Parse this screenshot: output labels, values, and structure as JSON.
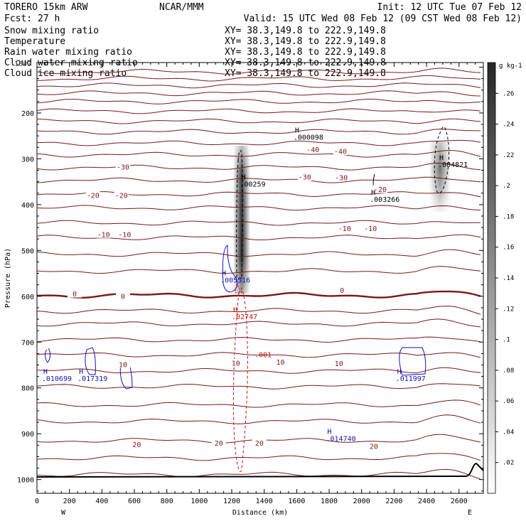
{
  "header": {
    "model": "TORERO   15km ARW",
    "org": "NCAR/MMM",
    "init": "Init: 12 UTC Tue 07 Feb 12",
    "fcst": "Fcst:   27 h",
    "valid": "Valid: 15 UTC Wed 08 Feb 12 (09 CST Wed 08 Feb 12)"
  },
  "fields": [
    {
      "name": "Snow mixing ratio",
      "xy": "XY=  38.3,149.8 to 222.9,149.8",
      "color": "#000000"
    },
    {
      "name": "Temperature",
      "xy": "XY=  38.3,149.8 to 222.9,149.8",
      "color": "#8b1a1a"
    },
    {
      "name": "Rain water mixing ratio",
      "xy": "XY=  38.3,149.8 to 222.9,149.8",
      "color": "#cc1111"
    },
    {
      "name": "Cloud water mixing ratio",
      "xy": "XY=  38.3,149.8 to 222.9,149.8",
      "color": "#1111bb"
    },
    {
      "name": "Cloud ice mixing ratio",
      "xy": "XY=  38.3,149.8 to 222.9,149.8",
      "color": "#000000"
    }
  ],
  "overlay": {
    "label": "1000",
    "color": "#555555"
  },
  "chart_data": {
    "type": "contour-cross-section",
    "title": "Snow mixing ratio, Temperature, Rain water, Cloud water and Cloud ice mixing ratio",
    "xlabel": "Distance (km)",
    "ylabel": "Pressure (hPa)",
    "xlim": [
      0,
      2750
    ],
    "ylim": [
      1030,
      90
    ],
    "xticks": [
      0,
      200,
      400,
      600,
      800,
      1000,
      1200,
      1400,
      1600,
      1800,
      2000,
      2200,
      2400,
      2600
    ],
    "yticks": [
      200,
      300,
      400,
      500,
      600,
      700,
      800,
      900,
      1000
    ],
    "x_end_labels": {
      "left": "W",
      "right": "E"
    },
    "colorbar": {
      "unit": "g kg-1",
      "min": 0,
      "max": 0.28,
      "ticks": [
        0.02,
        0.04,
        0.06,
        0.08,
        0.1,
        0.12,
        0.14,
        0.16,
        0.18,
        0.2,
        0.22,
        0.24,
        0.26
      ],
      "tick_labels": [
        ".02",
        ".04",
        ".06",
        ".08",
        ".1",
        ".12",
        ".14",
        ".16",
        ".18",
        ".2",
        ".22",
        ".24",
        ".26"
      ]
    },
    "temperature_contours": {
      "interval": 5,
      "levels_p": [
        110,
        125,
        140,
        157,
        175,
        196,
        218,
        241,
        266,
        291,
        319,
        347,
        377,
        407,
        440,
        472,
        508,
        545,
        598,
        632,
        660,
        695,
        728,
        763,
        797,
        837,
        873,
        915,
        953,
        989
      ],
      "labels": [
        {
          "text": "-40",
          "x": 1700,
          "p": 280
        },
        {
          "text": "-40",
          "x": 1870,
          "p": 284
        },
        {
          "text": "-30",
          "x": 530,
          "p": 318
        },
        {
          "text": "-30",
          "x": 1650,
          "p": 340
        },
        {
          "text": "-30",
          "x": 1875,
          "p": 341
        },
        {
          "text": "-20",
          "x": 345,
          "p": 380
        },
        {
          "text": "-20",
          "x": 520,
          "p": 380
        },
        {
          "text": "-20",
          "x": 2115,
          "p": 367
        },
        {
          "text": "-10",
          "x": 410,
          "p": 465
        },
        {
          "text": "-10",
          "x": 540,
          "p": 465
        },
        {
          "text": "-10",
          "x": 1895,
          "p": 452
        },
        {
          "text": "-10",
          "x": 2055,
          "p": 452
        },
        {
          "text": "0",
          "x": 232,
          "p": 595
        },
        {
          "text": "0",
          "x": 530,
          "p": 600
        },
        {
          "text": "0",
          "x": 1880,
          "p": 587
        },
        {
          "text": "10",
          "x": 530,
          "p": 749
        },
        {
          "text": "10",
          "x": 1225,
          "p": 746
        },
        {
          "text": "10",
          "x": 1500,
          "p": 744
        },
        {
          "text": "10",
          "x": 1860,
          "p": 747
        },
        {
          "text": "20",
          "x": 615,
          "p": 924
        },
        {
          "text": "20",
          "x": 1120,
          "p": 921
        },
        {
          "text": "20",
          "x": 1370,
          "p": 921
        },
        {
          "text": "20",
          "x": 2075,
          "p": 928
        }
      ]
    },
    "snow_mixing_ratio_max": [
      {
        "label": ".000098",
        "x": 1580,
        "p": 258
      },
      {
        "label": ".004821",
        "x": 2470,
        "p": 318
      }
    ],
    "cloud_ice_mixing_ratio_max": [
      {
        "label": ".00259",
        "x": 1250,
        "p": 361
      },
      {
        "label": ".003266",
        "x": 2050,
        "p": 394
      }
    ],
    "cloud_water_mixing_ratio_max": [
      {
        "label": ".005516",
        "x": 1130,
        "p": 570
      },
      {
        "label": ".010699",
        "x": 30,
        "p": 785
      },
      {
        "label": ".017319",
        "x": 250,
        "p": 785
      },
      {
        "label": ".014740",
        "x": 1780,
        "p": 916
      },
      {
        "label": ".011997",
        "x": 2210,
        "p": 785
      }
    ],
    "rain_water_mixing_ratio_max": [
      {
        "label": ".02747",
        "x": 1200,
        "p": 650
      }
    ],
    "rain_water_contour_labels": [
      {
        "label": ".001",
        "x": 1340,
        "p": 733
      }
    ]
  }
}
